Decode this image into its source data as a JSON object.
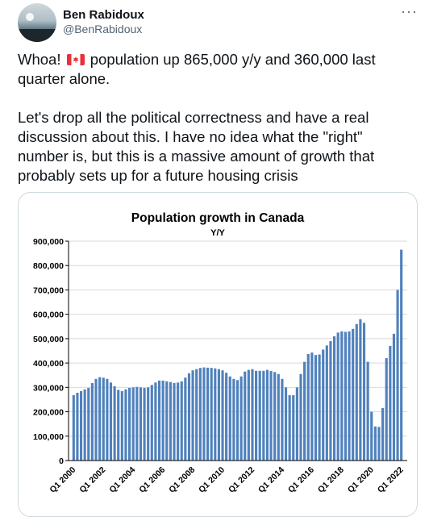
{
  "author": {
    "name": "Ben Rabidoux",
    "handle": "@BenRabidoux"
  },
  "menu": {
    "more_label": "···"
  },
  "tweet": {
    "text_before_flag": "Whoa! ",
    "flag_icon": "canada-flag-icon",
    "text_after_flag": " population up 865,000 y/y and 360,000 last quarter alone.\n\nLet's drop all the political correctness and have a real discussion about this. I have no idea what the \"right\" number is, but this is a massive amount of growth that probably sets up for a future housing crisis"
  },
  "colors": {
    "bar": "#4f81bd",
    "grid": "#d9d9d9",
    "handle": "#536471"
  },
  "chart_data": {
    "type": "bar",
    "title": "Population growth in Canada",
    "subtitle": "Y/Y",
    "ylim": [
      0,
      900000
    ],
    "yticks": [
      "0",
      "100,000",
      "200,000",
      "300,000",
      "400,000",
      "500,000",
      "600,000",
      "700,000",
      "800,000",
      "900,000"
    ],
    "xtick_labels": [
      "Q1 2000",
      "Q1 2002",
      "Q1 2004",
      "Q1 2006",
      "Q1 2008",
      "Q1 2010",
      "Q1 2012",
      "Q1 2014",
      "Q1 2016",
      "Q1 2018",
      "Q1 2020",
      "Q1 2022"
    ],
    "xtick_every": 8,
    "grid": true,
    "values": [
      268000,
      278000,
      285000,
      292000,
      298000,
      318000,
      335000,
      342000,
      340000,
      335000,
      320000,
      305000,
      290000,
      285000,
      292000,
      298000,
      300000,
      302000,
      300000,
      298000,
      300000,
      310000,
      320000,
      328000,
      328000,
      325000,
      322000,
      318000,
      320000,
      325000,
      340000,
      358000,
      370000,
      375000,
      380000,
      382000,
      381000,
      380000,
      378000,
      375000,
      370000,
      360000,
      345000,
      335000,
      330000,
      345000,
      365000,
      372000,
      375000,
      368000,
      368000,
      368000,
      372000,
      367000,
      363000,
      355000,
      335000,
      300000,
      268000,
      268000,
      300000,
      355000,
      405000,
      437000,
      443000,
      433000,
      435000,
      455000,
      472000,
      490000,
      510000,
      525000,
      530000,
      528000,
      530000,
      540000,
      560000,
      580000,
      565000,
      405000,
      200000,
      140000,
      138000,
      215000,
      420000,
      470000,
      520000,
      700000,
      865000
    ]
  }
}
